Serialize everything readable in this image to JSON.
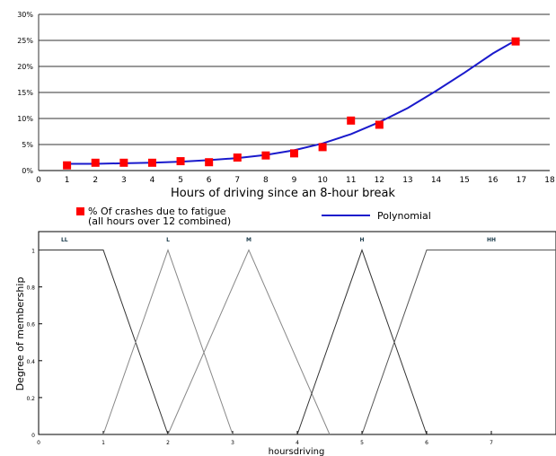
{
  "chart_data": [
    {
      "type": "scatter",
      "xlabel": "Hours of driving since an 8-hour break",
      "ylabel": "",
      "xlim": [
        0,
        18
      ],
      "ylim": [
        0,
        30
      ],
      "x_ticks": [
        "0",
        "1",
        "2",
        "3",
        "4",
        "5",
        "6",
        "7",
        "8",
        "9",
        "10",
        "11",
        "12",
        "13",
        "14",
        "15",
        "16",
        "17",
        "18"
      ],
      "y_ticks": [
        "0%",
        "5%",
        "10%",
        "15%",
        "20%",
        "25%",
        "30%"
      ],
      "grid": "horizontal",
      "legend_position": "bottom",
      "series": [
        {
          "name": "% Of crashes due to fatigue\n(all hours over 12 combined)",
          "kind": "markers",
          "color": "#ff0000",
          "x": [
            1,
            2,
            3,
            4,
            5,
            6,
            7,
            8,
            9,
            10,
            11,
            12,
            16.8
          ],
          "y": [
            1.0,
            1.5,
            1.5,
            1.5,
            1.8,
            1.6,
            2.5,
            2.9,
            3.3,
            4.5,
            9.6,
            8.8,
            24.8
          ]
        },
        {
          "name": "Polynomial",
          "kind": "line",
          "color": "#1a1acc",
          "x": [
            1,
            2,
            3,
            4,
            5,
            6,
            7,
            8,
            9,
            10,
            11,
            12,
            13,
            14,
            15,
            16,
            16.8
          ],
          "y": [
            1.3,
            1.3,
            1.4,
            1.5,
            1.7,
            2.0,
            2.4,
            3.0,
            3.9,
            5.2,
            7.0,
            9.3,
            12.0,
            15.3,
            18.8,
            22.5,
            25.0
          ]
        }
      ]
    },
    {
      "type": "line",
      "xlabel": "hoursdriving",
      "ylabel": "Degree of membership",
      "xlim": [
        0,
        8
      ],
      "ylim": [
        0,
        1.1
      ],
      "x_ticks": [
        "0",
        "1",
        "2",
        "3",
        "4",
        "5",
        "6",
        "7"
      ],
      "y_ticks": [
        "0",
        "0.2",
        "0.4",
        "0.6",
        "0.8",
        "1"
      ],
      "grid": false,
      "series": [
        {
          "name": "LL",
          "color": "#333333",
          "x": [
            0,
            1,
            2
          ],
          "y": [
            1,
            1,
            0
          ]
        },
        {
          "name": "L",
          "color": "#888888",
          "x": [
            1,
            2,
            3
          ],
          "y": [
            0,
            1,
            0
          ]
        },
        {
          "name": "M",
          "color": "#888888",
          "x": [
            2,
            3.25,
            4.5
          ],
          "y": [
            0,
            1,
            0
          ]
        },
        {
          "name": "H",
          "color": "#333333",
          "x": [
            4,
            5,
            6
          ],
          "y": [
            0,
            1,
            0
          ]
        },
        {
          "name": "HH",
          "color": "#555555",
          "x": [
            5,
            6,
            8
          ],
          "y": [
            0,
            1,
            1
          ]
        }
      ]
    }
  ]
}
